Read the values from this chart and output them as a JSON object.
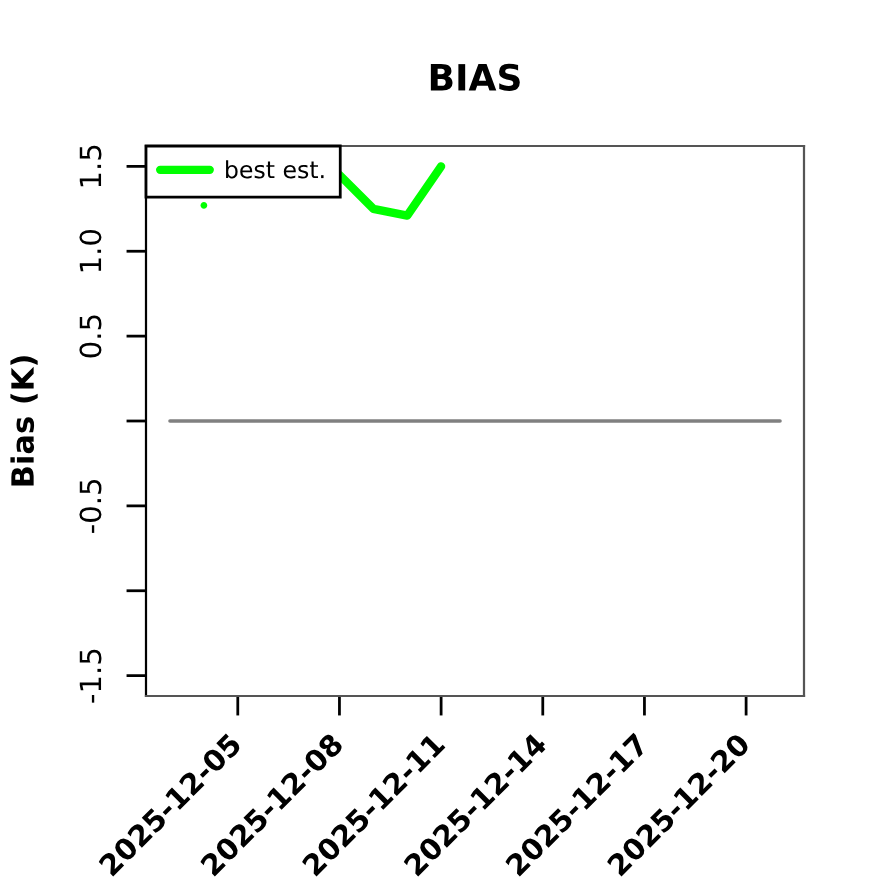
{
  "chart_data": {
    "type": "line",
    "title": "BIAS",
    "ylabel": "Bias (K)",
    "xlim": [
      "2025-12-02T07:00",
      "2025-12-21T17:00"
    ],
    "xticks": [
      "2025-12-05",
      "2025-12-08",
      "2025-12-11",
      "2025-12-14",
      "2025-12-17",
      "2025-12-20"
    ],
    "ylim": [
      -1.62,
      1.62
    ],
    "yticks": [
      -1.5,
      {
        "value": -1,
        "label": null
      },
      -0.5,
      {
        "value": 0,
        "label": null
      },
      0.5,
      {
        "value": 1,
        "label": "1.0"
      },
      1.5
    ],
    "series": [
      {
        "color": "#808080",
        "x": [
          "2025-12-03",
          "2025-12-21"
        ],
        "values": [
          0,
          0
        ]
      },
      {
        "name": "best est.",
        "color": "#00ff00",
        "x": [
          "2025-12-04",
          "2025-12-05",
          "2025-12-06",
          "2025-12-07",
          "2025-12-08",
          "2025-12-09",
          "2025-12-10",
          "2025-12-11"
        ],
        "values": [
          1.27,
          null,
          null,
          null,
          1.45,
          1.25,
          1.21,
          1.5
        ]
      }
    ],
    "legend": "top left",
    "grid": false
  }
}
